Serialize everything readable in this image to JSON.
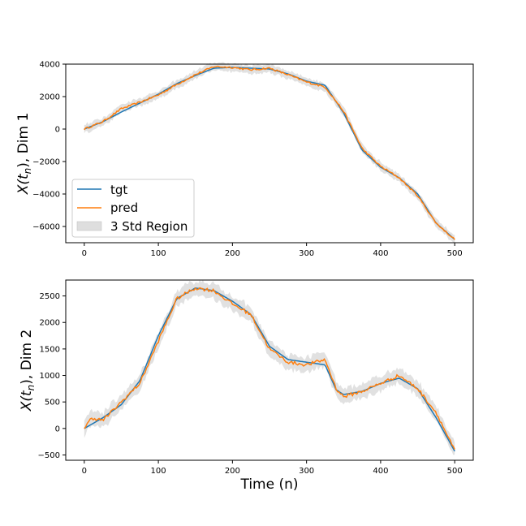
{
  "colors": {
    "tgt": "#1f77b4",
    "pred": "#ff7f0e",
    "band": "#c8c8c8",
    "axis": "#000000"
  },
  "legend": {
    "position": "lower-left",
    "entries": [
      "tgt",
      "pred",
      "3 Std Region"
    ]
  },
  "chart_data": [
    {
      "type": "line",
      "xlabel": "",
      "ylabel": "X(t_n), Dim 1",
      "ylabel_parts": {
        "main": "X(t",
        "sub": "n",
        "rest": "), Dim 1"
      },
      "xlim": [
        -25,
        525
      ],
      "ylim": [
        -7000,
        4000
      ],
      "xticks": [
        0,
        100,
        200,
        300,
        400,
        500
      ],
      "yticks": [
        -6000,
        -4000,
        -2000,
        0,
        2000,
        4000
      ],
      "series": [
        {
          "name": "tgt",
          "x": [
            0,
            25,
            50,
            75,
            100,
            125,
            150,
            175,
            200,
            225,
            250,
            275,
            300,
            325,
            350,
            375,
            400,
            425,
            450,
            475,
            500
          ],
          "y": [
            0,
            450,
            1050,
            1600,
            2150,
            2800,
            3300,
            3750,
            3800,
            3750,
            3700,
            3400,
            2950,
            2700,
            1000,
            -1300,
            -2350,
            -3000,
            -4000,
            -5800,
            -6800
          ]
        },
        {
          "name": "pred",
          "x": [
            0,
            25,
            50,
            75,
            100,
            125,
            150,
            175,
            200,
            225,
            250,
            275,
            300,
            325,
            350,
            375,
            400,
            425,
            450,
            475,
            500
          ],
          "y": [
            0,
            450,
            1250,
            1650,
            2100,
            2750,
            3350,
            3850,
            3800,
            3650,
            3750,
            3350,
            2900,
            2600,
            1100,
            -1200,
            -2300,
            -3000,
            -4100,
            -5800,
            -6800
          ]
        }
      ],
      "band": {
        "name": "3 Std Region",
        "half_width": 250
      }
    },
    {
      "type": "line",
      "xlabel": "Time (n)",
      "ylabel": "X(t_n), Dim 2",
      "ylabel_parts": {
        "main": "X(t",
        "sub": "n",
        "rest": "), Dim 2"
      },
      "xlim": [
        -25,
        525
      ],
      "ylim": [
        -600,
        2800
      ],
      "xticks": [
        0,
        100,
        200,
        300,
        400,
        500
      ],
      "yticks": [
        -500,
        0,
        500,
        1000,
        1500,
        2000,
        2500
      ],
      "series": [
        {
          "name": "tgt",
          "x": [
            0,
            25,
            50,
            75,
            100,
            125,
            150,
            175,
            200,
            225,
            250,
            275,
            300,
            325,
            340,
            350,
            375,
            400,
            425,
            450,
            475,
            500
          ],
          "y": [
            0,
            200,
            450,
            900,
            1750,
            2450,
            2650,
            2600,
            2400,
            2150,
            1550,
            1300,
            1250,
            1200,
            730,
            640,
            700,
            850,
            950,
            750,
            200,
            -430
          ]
        },
        {
          "name": "pred",
          "x": [
            0,
            10,
            25,
            50,
            75,
            100,
            125,
            150,
            175,
            200,
            225,
            250,
            275,
            300,
            325,
            340,
            350,
            375,
            400,
            425,
            450,
            475,
            500
          ],
          "y": [
            0,
            200,
            150,
            500,
            850,
            1650,
            2450,
            2650,
            2600,
            2350,
            2150,
            1500,
            1250,
            1200,
            1300,
            750,
            600,
            700,
            850,
            1000,
            750,
            300,
            -420
          ]
        }
      ],
      "band": {
        "name": "3 Std Region",
        "half_width": 140
      }
    }
  ]
}
